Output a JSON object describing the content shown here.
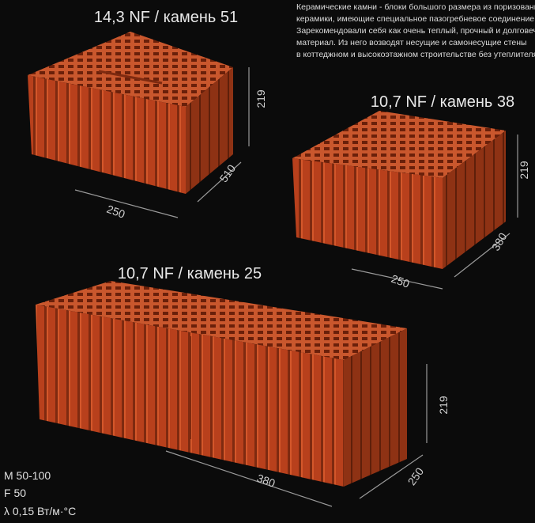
{
  "description": [
    "Керамические камни - блоки большого размера из поризованной",
    "керамики, имеющие специальное пазогребневое соединение.",
    "Зарекомендовали себя как очень теплый, прочный и долговечный",
    "материал. Из него возводят несущие и самонесущие стены",
    "в коттеджном и высокоэтажном строительстве без утеплителя."
  ],
  "blocks": [
    {
      "title": "14,3 NF / камень 51",
      "height": 219,
      "length": 510,
      "width": 250
    },
    {
      "title": "10,7 NF / камень 38",
      "height": 219,
      "length": 380,
      "width": 250
    },
    {
      "title": "10,7 NF / камень 25",
      "height": 219,
      "length": 380,
      "width": 250
    }
  ],
  "specs": [
    "M 50-100",
    "F 50",
    "λ 0,15 Вт/м·°C"
  ]
}
